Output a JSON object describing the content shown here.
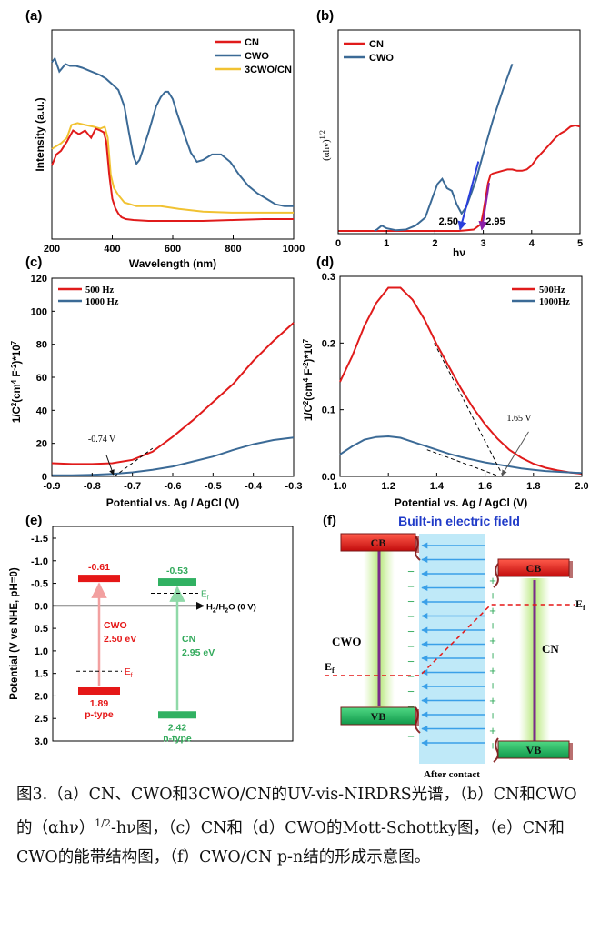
{
  "colors": {
    "cn": "#e01b1b",
    "cwo": "#3b6a96",
    "c3": "#f1c232",
    "arrow_blue": "#2a3fdc",
    "arrow_purple": "#8b1fa8",
    "field_text": "#1f3ac8",
    "field_bg": "#bfe9f8",
    "glow": "#c7ee94",
    "bar_red": "#e51717",
    "bar_green": "#31b162",
    "vb_green": "#21b35f",
    "cn_text_green": "#33aa5c"
  },
  "chart_data": [
    {
      "id": "a",
      "type": "line",
      "panel_label": "(a)",
      "xlabel": "Wavelength (nm)",
      "ylabel": "Intensity (a.u.)",
      "xlim": [
        200,
        1000
      ],
      "xticks": [
        200,
        400,
        600,
        800,
        1000
      ],
      "series": [
        {
          "name": "CN",
          "x": [
            200,
            215,
            230,
            250,
            270,
            290,
            310,
            330,
            345,
            360,
            372,
            380,
            390,
            400,
            410,
            420,
            430,
            445,
            470,
            520,
            600,
            700,
            800,
            900,
            1000
          ],
          "y": [
            0.3,
            0.36,
            0.38,
            0.43,
            0.49,
            0.47,
            0.49,
            0.45,
            0.5,
            0.49,
            0.48,
            0.43,
            0.25,
            0.12,
            0.07,
            0.04,
            0.02,
            0.01,
            0.005,
            0,
            0,
            0,
            0.005,
            0.01,
            0.01
          ]
        },
        {
          "name": "CWO",
          "x": [
            200,
            210,
            225,
            245,
            260,
            280,
            300,
            330,
            360,
            380,
            400,
            420,
            440,
            455,
            470,
            480,
            490,
            500,
            520,
            545,
            560,
            575,
            585,
            600,
            615,
            640,
            660,
            680,
            700,
            730,
            760,
            790,
            820,
            850,
            880,
            910,
            940,
            970,
            1000
          ],
          "y": [
            0.86,
            0.88,
            0.81,
            0.85,
            0.84,
            0.84,
            0.83,
            0.81,
            0.79,
            0.77,
            0.74,
            0.71,
            0.62,
            0.48,
            0.35,
            0.31,
            0.33,
            0.38,
            0.48,
            0.62,
            0.67,
            0.7,
            0.7,
            0.66,
            0.58,
            0.46,
            0.37,
            0.32,
            0.33,
            0.36,
            0.36,
            0.32,
            0.25,
            0.19,
            0.15,
            0.12,
            0.09,
            0.08,
            0.08
          ]
        },
        {
          "name": "3CWO/CN",
          "x": [
            200,
            210,
            230,
            250,
            265,
            285,
            310,
            340,
            360,
            375,
            385,
            395,
            405,
            420,
            440,
            460,
            480,
            520,
            560,
            620,
            700,
            800,
            900,
            1000
          ],
          "y": [
            0.39,
            0.4,
            0.42,
            0.45,
            0.52,
            0.53,
            0.52,
            0.51,
            0.5,
            0.51,
            0.45,
            0.25,
            0.18,
            0.14,
            0.1,
            0.09,
            0.08,
            0.08,
            0.08,
            0.065,
            0.05,
            0.045,
            0.045,
            0.045
          ]
        }
      ],
      "legend": [
        "CN",
        "CWO",
        "3CWO/CN"
      ]
    },
    {
      "id": "b",
      "type": "line",
      "panel_label": "(b)",
      "xlabel": "hν",
      "ylabel": "(αhν)1/2",
      "xlim": [
        0,
        5
      ],
      "xticks": [
        0,
        1,
        2,
        3,
        4,
        5
      ],
      "series": [
        {
          "name": "CN",
          "x": [
            0,
            0.8,
            1.0,
            1.5,
            2.0,
            2.5,
            2.8,
            2.95,
            3.0,
            3.05,
            3.1,
            3.15,
            3.2,
            3.3,
            3.4,
            3.5,
            3.6,
            3.7,
            3.8,
            3.9,
            4.0,
            4.1,
            4.2,
            4.3,
            4.4,
            4.5,
            4.6,
            4.7,
            4.8,
            4.9,
            5.0
          ],
          "y": [
            0,
            0,
            0,
            0,
            0,
            0,
            0.01,
            0.05,
            0.14,
            0.25,
            0.36,
            0.42,
            0.43,
            0.44,
            0.45,
            0.46,
            0.46,
            0.45,
            0.45,
            0.46,
            0.49,
            0.54,
            0.58,
            0.62,
            0.66,
            0.7,
            0.73,
            0.75,
            0.78,
            0.79,
            0.78
          ]
        },
        {
          "name": "CWO",
          "x": [
            0.75,
            0.8,
            0.9,
            1.0,
            1.2,
            1.4,
            1.6,
            1.8,
            1.95,
            2.05,
            2.15,
            2.25,
            2.35,
            2.45,
            2.55,
            2.65,
            2.75,
            2.85,
            3.0,
            3.2,
            3.4,
            3.6
          ],
          "y": [
            0,
            0.01,
            0.04,
            0.02,
            0.005,
            0.01,
            0.04,
            0.1,
            0.25,
            0.35,
            0.39,
            0.32,
            0.3,
            0.2,
            0.13,
            0.18,
            0.28,
            0.38,
            0.58,
            0.83,
            1.05,
            1.25
          ]
        }
      ],
      "annotations": [
        {
          "text": "2.50",
          "x": 2.5
        },
        {
          "text": "2.95",
          "x": 2.95
        }
      ],
      "legend": [
        "CN",
        "CWO"
      ]
    },
    {
      "id": "c",
      "type": "line",
      "panel_label": "(c)",
      "xlabel": "Potential vs. Ag / AgCl (V)",
      "ylabel": "1/C2 (cm4 F-2)*107",
      "xlim": [
        -0.9,
        -0.3
      ],
      "ylim": [
        0,
        120
      ],
      "xticks": [
        -0.9,
        -0.8,
        -0.7,
        -0.6,
        -0.5,
        -0.4,
        -0.3
      ],
      "yticks": [
        0,
        20,
        40,
        60,
        80,
        100,
        120
      ],
      "series": [
        {
          "name": "500 Hz",
          "x": [
            -0.9,
            -0.85,
            -0.8,
            -0.75,
            -0.7,
            -0.65,
            -0.6,
            -0.55,
            -0.5,
            -0.45,
            -0.4,
            -0.35,
            -0.3
          ],
          "y": [
            8,
            7.5,
            7.5,
            8,
            10,
            15,
            24,
            34,
            45,
            56,
            70,
            82,
            93
          ]
        },
        {
          "name": "1000 Hz",
          "x": [
            -0.9,
            -0.85,
            -0.8,
            -0.75,
            -0.7,
            -0.65,
            -0.6,
            -0.55,
            -0.5,
            -0.45,
            -0.4,
            -0.35,
            -0.3
          ],
          "y": [
            0.7,
            0.7,
            1,
            1.5,
            2.5,
            4,
            6,
            9,
            12,
            16,
            19.5,
            22,
            23.5
          ]
        }
      ],
      "tangent": {
        "x": [
          -0.745,
          -0.65
        ],
        "y": [
          0,
          17
        ]
      },
      "annotations": [
        {
          "text": "-0.74 V",
          "x": -0.74
        }
      ],
      "legend": [
        "500 Hz",
        "1000 Hz"
      ]
    },
    {
      "id": "d",
      "type": "line",
      "panel_label": "(d)",
      "xlabel": "Potential vs. Ag / AgCl (V)",
      "ylabel": "1/C2 (cm4 F-2)*107",
      "xlim": [
        1.0,
        2.0
      ],
      "ylim": [
        0,
        0.3
      ],
      "xticks": [
        1.0,
        1.2,
        1.4,
        1.6,
        1.8,
        2.0
      ],
      "yticks": [
        0,
        0.1,
        0.2,
        0.3
      ],
      "series": [
        {
          "name": "500Hz",
          "x": [
            1.0,
            1.05,
            1.1,
            1.15,
            1.2,
            1.25,
            1.3,
            1.35,
            1.4,
            1.45,
            1.5,
            1.55,
            1.6,
            1.65,
            1.7,
            1.75,
            1.8,
            1.85,
            1.9,
            1.95,
            2.0
          ],
          "y": [
            0.142,
            0.18,
            0.225,
            0.26,
            0.283,
            0.283,
            0.265,
            0.235,
            0.198,
            0.165,
            0.132,
            0.103,
            0.078,
            0.057,
            0.04,
            0.028,
            0.019,
            0.013,
            0.009,
            0.006,
            0.004
          ]
        },
        {
          "name": "1000Hz",
          "x": [
            1.0,
            1.05,
            1.1,
            1.15,
            1.2,
            1.25,
            1.3,
            1.35,
            1.4,
            1.45,
            1.5,
            1.55,
            1.6,
            1.65,
            1.7,
            1.75,
            1.8,
            1.85,
            1.9,
            1.95,
            2.0
          ],
          "y": [
            0.033,
            0.045,
            0.055,
            0.059,
            0.06,
            0.058,
            0.052,
            0.046,
            0.04,
            0.034,
            0.029,
            0.025,
            0.021,
            0.018,
            0.015,
            0.012,
            0.01,
            0.008,
            0.007,
            0.006,
            0.005
          ]
        }
      ],
      "tangents": [
        {
          "x": [
            1.39,
            1.675
          ],
          "y": [
            0.2,
            0
          ]
        },
        {
          "x": [
            1.36,
            1.66
          ],
          "y": [
            0.04,
            0
          ]
        }
      ],
      "annotations": [
        {
          "text": "1.65 V",
          "x": 1.65
        }
      ],
      "legend": [
        "500Hz",
        "1000Hz"
      ]
    },
    {
      "id": "e",
      "type": "band_diagram",
      "panel_label": "(e)",
      "ylabel": "Potential (V vs NHE, pH=0)",
      "ylim": [
        -1.5,
        3.0
      ],
      "yticks": [
        -1.5,
        -1.0,
        -0.5,
        0.0,
        0.5,
        1.0,
        1.5,
        2.0,
        2.5,
        3.0
      ],
      "materials": [
        {
          "name": "CWO",
          "cb": -0.61,
          "vb": 1.89,
          "gap": "2.50 eV",
          "type": "p-type",
          "cb_label": "-0.61",
          "vb_label": "1.89",
          "ef": 1.45
        },
        {
          "name": "CN",
          "cb": -0.53,
          "vb": 2.42,
          "gap": "2.95 eV",
          "type": "n-type",
          "cb_label": "-0.53",
          "vb_label": "2.42",
          "ef": -0.28
        }
      ],
      "h2_label_main": "H",
      "h2_label_sub": "2",
      "h2_label_rest": "/H",
      "h2_label_sub2": "2",
      "h2_label_tail": "O  (0 V)",
      "ef_label": "E",
      "ef_sub": "f"
    },
    {
      "id": "f",
      "type": "schematic",
      "panel_label": "(f)",
      "title": "Built-in electric field",
      "left": "CWO",
      "right": "CN",
      "cb": "CB",
      "vb": "VB",
      "ef": "E",
      "ef_sub": "f",
      "bottom": "After contact"
    }
  ],
  "labels": {
    "tick_a_x": [
      "200",
      "400",
      "600",
      "800",
      "1000"
    ],
    "tick_b_x": [
      "0",
      "1",
      "2",
      "3",
      "4",
      "5"
    ],
    "tick_c_x": [
      "-0.9",
      "-0.8",
      "-0.7",
      "-0.6",
      "-0.5",
      "-0.4",
      "-0.3"
    ],
    "tick_c_y": [
      "0",
      "20",
      "40",
      "60",
      "80",
      "100",
      "120"
    ],
    "tick_d_x": [
      "1.0",
      "1.2",
      "1.4",
      "1.6",
      "1.8",
      "2.0"
    ],
    "tick_d_y": [
      "0.0",
      "0.1",
      "0.2",
      "0.3"
    ],
    "tick_e_y": [
      "-1.5",
      "-1.0",
      "-0.5",
      "0.0",
      "0.5",
      "1.0",
      "1.5",
      "2.0",
      "2.5",
      "3.0"
    ],
    "b_ylabel_main": "(αhν)",
    "b_ylabel_sup": "1/2",
    "cd_ylabel_a": "1/C",
    "cd_ylabel_2": "2",
    "cd_ylabel_b": "(cm",
    "cd_ylabel_4": "4",
    "cd_ylabel_c": "F",
    "cd_ylabel_m2": "-2",
    "cd_ylabel_d": ")*10",
    "cd_ylabel_7": "7",
    "plus": "+",
    "minus": "−"
  },
  "caption": "图3.（a）CN、CWO和3CWO/CN的UV-vis-NIRDRS光谱，（b）CN和CWO的（αhν）1/2-hν图，（c）CN和（d）CWO的Mott-Schottky图，（e）CN和CWO的能带结构图，（f）CWO/CN p-n结的形成示意图。",
  "caption_parts": {
    "p1": "图3.（a）CN、CWO和3CWO/CN的UV-vis-NIRDRS光谱，（b）CN和CWO的（αhν）",
    "sup": "1/2",
    "p2": "-hν图，（c）CN和（d）CWO的Mott-Schottky图，（e）CN和CWO的能带结构图，（f）CWO/CN p-n结的形成示意图。"
  }
}
